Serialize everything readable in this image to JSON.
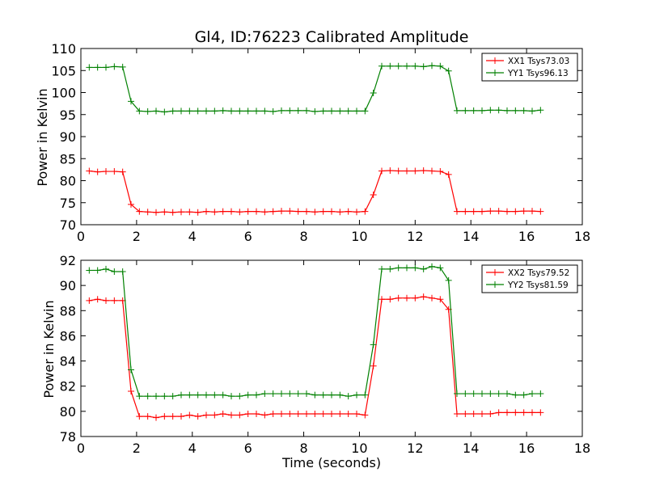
{
  "chart_data": [
    {
      "type": "line",
      "title": "Gl4, ID:76223 Calibrated Amplitude",
      "xlabel": "",
      "ylabel": "Power in Kelvin",
      "xlim": [
        0,
        18
      ],
      "ylim": [
        70,
        110
      ],
      "xticks": [
        "0",
        "2",
        "4",
        "6",
        "8",
        "10",
        "12",
        "14",
        "16",
        "18"
      ],
      "yticks": [
        "70",
        "75",
        "80",
        "85",
        "90",
        "95",
        "100",
        "105",
        "110"
      ],
      "grid": false,
      "legend_position": "top-right",
      "x": [
        0.3,
        0.6,
        0.9,
        1.2,
        1.5,
        1.8,
        2.1,
        2.4,
        2.7,
        3.0,
        3.3,
        3.6,
        3.9,
        4.2,
        4.5,
        4.8,
        5.1,
        5.4,
        5.7,
        6.0,
        6.3,
        6.6,
        6.9,
        7.2,
        7.5,
        7.8,
        8.1,
        8.4,
        8.7,
        9.0,
        9.3,
        9.6,
        9.9,
        10.2,
        10.5,
        10.8,
        11.1,
        11.4,
        11.7,
        12.0,
        12.3,
        12.6,
        12.9,
        13.2,
        13.5,
        13.8,
        14.1,
        14.4,
        14.7,
        15.0,
        15.3,
        15.6,
        15.9,
        16.2,
        16.5
      ],
      "series": [
        {
          "name": "XX1 Tsys73.03",
          "color": "#ff0000",
          "values": [
            82.2,
            82.0,
            82.1,
            82.1,
            82.0,
            74.6,
            73.0,
            72.9,
            72.8,
            72.9,
            72.8,
            72.9,
            72.9,
            72.8,
            73.0,
            72.9,
            73.0,
            73.0,
            72.9,
            73.0,
            73.0,
            72.9,
            73.0,
            73.1,
            73.1,
            73.0,
            73.0,
            72.9,
            73.0,
            73.0,
            72.9,
            73.0,
            72.9,
            73.0,
            76.8,
            82.2,
            82.3,
            82.2,
            82.2,
            82.2,
            82.3,
            82.2,
            82.1,
            81.4,
            73.0,
            73.0,
            73.0,
            73.0,
            73.1,
            73.1,
            73.0,
            73.0,
            73.1,
            73.1,
            73.0
          ]
        },
        {
          "name": "YY1 Tsys96.13",
          "color": "#008000",
          "values": [
            105.7,
            105.7,
            105.7,
            105.9,
            105.8,
            98.0,
            95.8,
            95.7,
            95.8,
            95.6,
            95.8,
            95.8,
            95.8,
            95.8,
            95.8,
            95.8,
            95.9,
            95.8,
            95.8,
            95.8,
            95.8,
            95.8,
            95.7,
            95.9,
            95.9,
            95.9,
            95.9,
            95.7,
            95.8,
            95.8,
            95.8,
            95.8,
            95.8,
            95.8,
            99.9,
            106.0,
            106.0,
            106.0,
            106.0,
            106.0,
            105.9,
            106.1,
            106.0,
            104.9,
            95.9,
            95.9,
            95.9,
            95.9,
            96.0,
            96.0,
            95.9,
            95.9,
            95.9,
            95.8,
            96.0
          ]
        }
      ]
    },
    {
      "type": "line",
      "title": "",
      "xlabel": "Time (seconds)",
      "ylabel": "Power in Kelvin",
      "xlim": [
        0,
        18
      ],
      "ylim": [
        78,
        92
      ],
      "xticks": [
        "0",
        "2",
        "4",
        "6",
        "8",
        "10",
        "12",
        "14",
        "16",
        "18"
      ],
      "yticks": [
        "78",
        "80",
        "82",
        "84",
        "86",
        "88",
        "90",
        "92"
      ],
      "grid": false,
      "legend_position": "top-right",
      "x": [
        0.3,
        0.6,
        0.9,
        1.2,
        1.5,
        1.8,
        2.1,
        2.4,
        2.7,
        3.0,
        3.3,
        3.6,
        3.9,
        4.2,
        4.5,
        4.8,
        5.1,
        5.4,
        5.7,
        6.0,
        6.3,
        6.6,
        6.9,
        7.2,
        7.5,
        7.8,
        8.1,
        8.4,
        8.7,
        9.0,
        9.3,
        9.6,
        9.9,
        10.2,
        10.5,
        10.8,
        11.1,
        11.4,
        11.7,
        12.0,
        12.3,
        12.6,
        12.9,
        13.2,
        13.5,
        13.8,
        14.1,
        14.4,
        14.7,
        15.0,
        15.3,
        15.6,
        15.9,
        16.2,
        16.5
      ],
      "series": [
        {
          "name": "XX2 Tsys79.52",
          "color": "#ff0000",
          "values": [
            88.8,
            88.9,
            88.8,
            88.8,
            88.8,
            81.6,
            79.6,
            79.6,
            79.5,
            79.6,
            79.6,
            79.6,
            79.7,
            79.6,
            79.7,
            79.7,
            79.8,
            79.7,
            79.7,
            79.8,
            79.8,
            79.7,
            79.8,
            79.8,
            79.8,
            79.8,
            79.8,
            79.8,
            79.8,
            79.8,
            79.8,
            79.8,
            79.8,
            79.7,
            83.6,
            88.9,
            88.9,
            89.0,
            89.0,
            89.0,
            89.1,
            89.0,
            88.9,
            88.1,
            79.8,
            79.8,
            79.8,
            79.8,
            79.8,
            79.9,
            79.9,
            79.9,
            79.9,
            79.9,
            79.9
          ]
        },
        {
          "name": "YY2 Tsys81.59",
          "color": "#008000",
          "values": [
            91.2,
            91.2,
            91.3,
            91.1,
            91.1,
            83.3,
            81.2,
            81.2,
            81.2,
            81.2,
            81.2,
            81.3,
            81.3,
            81.3,
            81.3,
            81.3,
            81.3,
            81.2,
            81.2,
            81.3,
            81.3,
            81.4,
            81.4,
            81.4,
            81.4,
            81.4,
            81.4,
            81.3,
            81.3,
            81.3,
            81.3,
            81.2,
            81.3,
            81.3,
            85.3,
            91.3,
            91.3,
            91.4,
            91.4,
            91.4,
            91.3,
            91.5,
            91.4,
            90.4,
            81.4,
            81.4,
            81.4,
            81.4,
            81.4,
            81.4,
            81.4,
            81.3,
            81.3,
            81.4,
            81.4
          ]
        }
      ]
    }
  ]
}
